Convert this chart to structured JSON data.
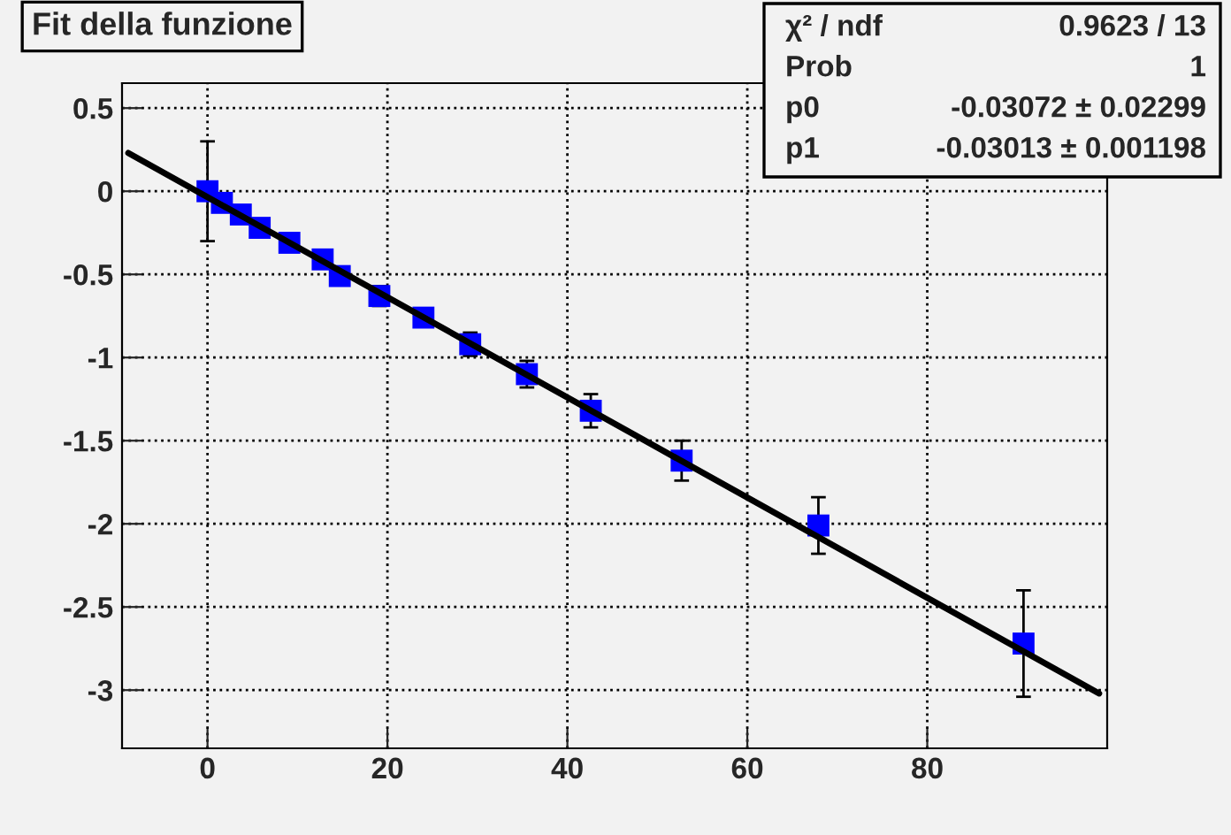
{
  "chart_data": {
    "type": "scatter",
    "title": "Fit della funzione",
    "xlim": [
      -9.5,
      100
    ],
    "ylim": [
      -3.35,
      0.65
    ],
    "xticks": [
      0,
      20,
      40,
      60,
      80
    ],
    "yticks": [
      0.5,
      0,
      -0.5,
      -1,
      -1.5,
      -2,
      -2.5,
      -3
    ],
    "grid": true,
    "series": [
      {
        "color": "#0000ff",
        "marker": "square",
        "x": [
          0,
          1.6,
          3.7,
          5.8,
          9.1,
          12.8,
          14.7,
          19.1,
          24.0,
          29.2,
          35.5,
          42.6,
          52.7,
          67.9,
          90.7
        ],
        "values": [
          0,
          -0.07,
          -0.14,
          -0.22,
          -0.31,
          -0.41,
          -0.51,
          -0.63,
          -0.76,
          -0.92,
          -1.1,
          -1.32,
          -1.62,
          -2.01,
          -2.72
        ],
        "errors": [
          0.3,
          0.02,
          0.02,
          0.03,
          0.03,
          0.03,
          0.03,
          0.06,
          0.05,
          0.07,
          0.08,
          0.1,
          0.12,
          0.17,
          0.32
        ]
      },
      {
        "type": "line",
        "color": "#000000",
        "x": [
          -8.8,
          99.1
        ],
        "values": [
          0.23,
          -3.02
        ]
      }
    ],
    "annotations": [
      "χ² / ndf",
      "0.9623 / 13",
      "Prob",
      "1",
      "p0",
      "-0.03072 ± 0.02299",
      "p1",
      "-0.03013 ± 0.001198"
    ]
  }
}
